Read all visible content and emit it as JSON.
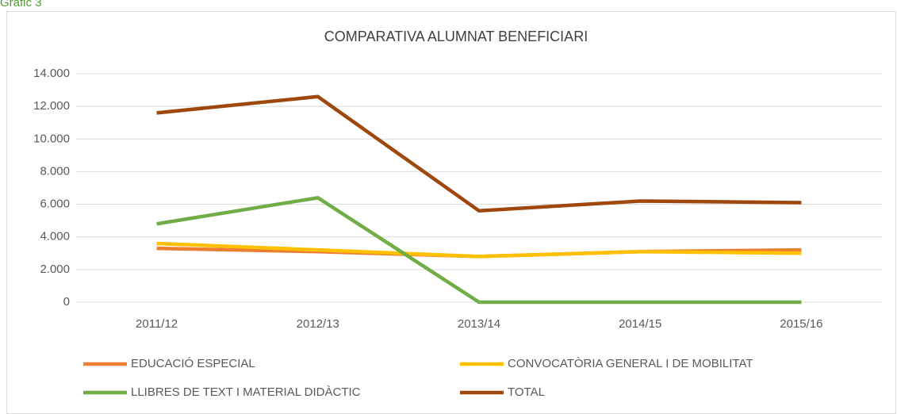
{
  "caption": "Gràfic 3",
  "chart_data": {
    "type": "line",
    "title": "COMPARATIVA ALUMNAT BENEFICIARI",
    "categories": [
      "2011/12",
      "2012/13",
      "2013/14",
      "2014/15",
      "2015/16"
    ],
    "series": [
      {
        "name": "EDUCACIÓ ESPECIAL",
        "color": "#ED7D31",
        "values": [
          3300,
          3100,
          2800,
          3100,
          3200
        ]
      },
      {
        "name": "CONVOCATÒRIA GENERAL I DE MOBILITAT",
        "color": "#FFC000",
        "values": [
          3600,
          3200,
          2800,
          3100,
          3000
        ]
      },
      {
        "name": "LLIBRES DE TEXT I MATERIAL DIDÀCTIC",
        "color": "#70AD47",
        "values": [
          4800,
          6400,
          0,
          0,
          0
        ]
      },
      {
        "name": "TOTAL",
        "color": "#9E480E",
        "values": [
          11600,
          12600,
          5600,
          6200,
          6100
        ]
      }
    ],
    "ylim": [
      0,
      14000
    ],
    "yticks": [
      0,
      {
        "value": 2000,
        "label": "2.000"
      },
      {
        "value": 4000,
        "label": "4.000"
      },
      {
        "value": 6000,
        "label": "6.000"
      },
      {
        "value": 8000,
        "label": "8.000"
      },
      {
        "value": 10000,
        "label": "10.000"
      },
      {
        "value": 12000,
        "label": "12.000"
      },
      {
        "value": 14000,
        "label": "14.000"
      }
    ],
    "grid": true,
    "legend": "bottom"
  }
}
